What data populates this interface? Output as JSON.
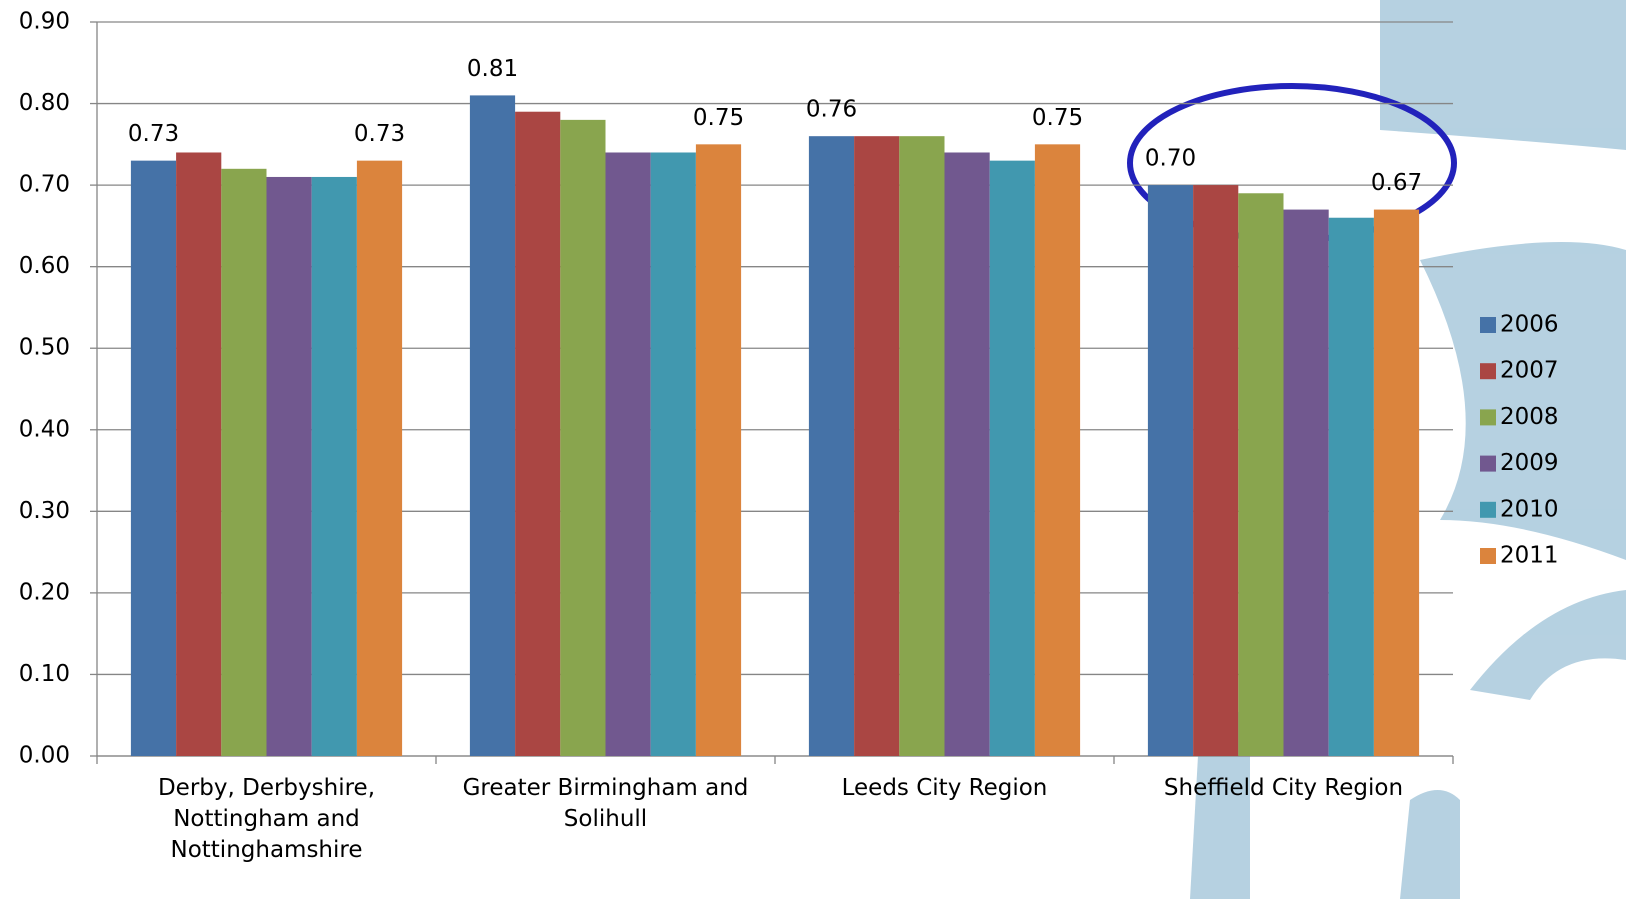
{
  "chart_data": {
    "type": "bar",
    "categories": [
      "Derby, Derbyshire, Nottingham and Nottinghamshire",
      "Greater Birmingham and Solihull",
      "Leeds City Region",
      "Sheffield City Region"
    ],
    "series": [
      {
        "name": "2006",
        "color": "#4572a7",
        "values": [
          0.73,
          0.81,
          0.76,
          0.7
        ],
        "value_labels": [
          "0.73",
          "0.81",
          "0.76",
          "0.70"
        ]
      },
      {
        "name": "2007",
        "color": "#aa4643",
        "values": [
          0.74,
          0.79,
          0.76,
          0.7
        ]
      },
      {
        "name": "2008",
        "color": "#89a54e",
        "values": [
          0.72,
          0.78,
          0.76,
          0.69
        ]
      },
      {
        "name": "2009",
        "color": "#71588f",
        "values": [
          0.71,
          0.74,
          0.74,
          0.67
        ]
      },
      {
        "name": "2010",
        "color": "#4198af",
        "values": [
          0.71,
          0.74,
          0.73,
          0.66
        ]
      },
      {
        "name": "2011",
        "color": "#db843d",
        "values": [
          0.73,
          0.75,
          0.75,
          0.67
        ],
        "value_labels": [
          "0.73",
          "0.75",
          "0.75",
          "0.67"
        ]
      }
    ],
    "ylim": [
      0,
      0.9
    ],
    "yticks": [
      {
        "value": 0,
        "label": "0.00"
      },
      {
        "value": 0.1,
        "label": "0.10"
      },
      {
        "value": 0.2,
        "label": "0.20"
      },
      {
        "value": 0.3,
        "label": "0.30"
      },
      {
        "value": 0.4,
        "label": "0.40"
      },
      {
        "value": 0.5,
        "label": "0.50"
      },
      {
        "value": 0.6,
        "label": "0.60"
      },
      {
        "value": 0.7,
        "label": "0.70"
      },
      {
        "value": 0.8,
        "label": "0.80"
      },
      {
        "value": 0.9,
        "label": "0.90"
      }
    ],
    "grid": true,
    "legend": "right"
  }
}
